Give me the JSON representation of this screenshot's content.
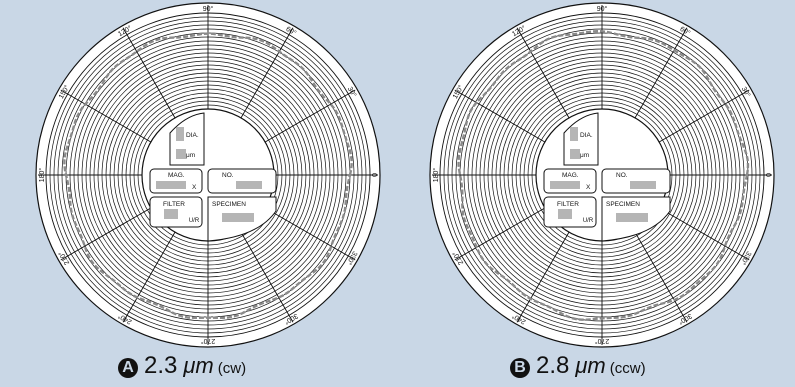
{
  "discs": [
    {
      "id": "a",
      "letter": "A",
      "value": "2.3",
      "unit": "μm",
      "direction": "(cw)",
      "angle_labels": [
        "90°",
        "60°",
        "30°",
        "0",
        "330°",
        "300°",
        "270°",
        "240°",
        "210°",
        "180°",
        "150°",
        "120°"
      ],
      "fields": {
        "dia_label": "DIA.",
        "um_label": "μm",
        "mag_label": "MAG.",
        "x_label": "X",
        "no_label": "NO.",
        "filter_label": "FILTER",
        "filter_suffix": "U/R",
        "specimen_label": "SPECIMEN"
      }
    },
    {
      "id": "b",
      "letter": "B",
      "value": "2.8",
      "unit": "μm",
      "direction": "(ccw)",
      "angle_labels": [
        "90°",
        "60°",
        "30°",
        "0",
        "330°",
        "300°",
        "270°",
        "240°",
        "210°",
        "180°",
        "150°",
        "120°"
      ],
      "fields": {
        "dia_label": "DIA.",
        "um_label": "μm",
        "mag_label": "MAG.",
        "x_label": "X",
        "no_label": "NO.",
        "filter_label": "FILTER",
        "filter_suffix": "U/R",
        "specimen_label": "SPECIMEN"
      }
    }
  ],
  "colors": {
    "background": "#c9d7e6",
    "ring": "#111111",
    "trace": "#8a8a8a"
  }
}
